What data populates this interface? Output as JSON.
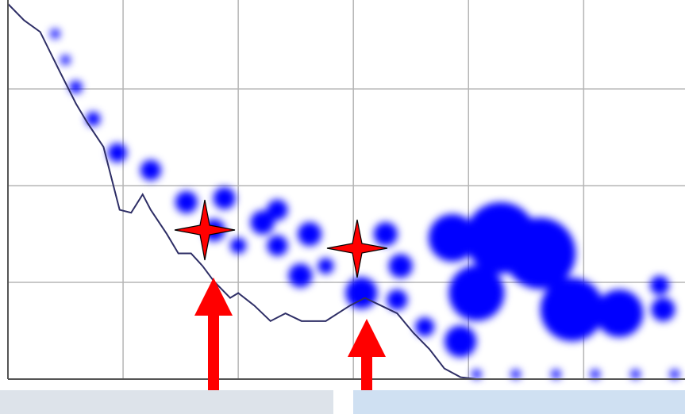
{
  "chart_data": {
    "type": "line",
    "xlim": [
      0,
      5.88
    ],
    "ylim": [
      0,
      3.92
    ],
    "xgrid": [
      1,
      2,
      3,
      4,
      5
    ],
    "ygrid": [
      1,
      2,
      3
    ],
    "grid": true,
    "series": [
      {
        "type": "line",
        "color": "#2e2e66",
        "x": [
          0,
          0.14,
          0.28,
          0.45,
          0.59,
          0.69,
          0.83,
          0.97,
          1.07,
          1.17,
          1.24,
          1.38,
          1.48,
          1.59,
          1.69,
          1.79,
          1.93,
          2.0,
          2.14,
          2.28,
          2.41,
          2.55,
          2.76,
          2.97,
          3.1,
          3.24,
          3.38,
          3.52,
          3.66,
          3.79,
          3.93,
          4.07
        ],
        "values": [
          3.88,
          3.71,
          3.59,
          3.18,
          2.85,
          2.65,
          2.4,
          1.75,
          1.72,
          1.91,
          1.75,
          1.5,
          1.3,
          1.3,
          1.17,
          1.01,
          0.84,
          0.89,
          0.76,
          0.6,
          0.68,
          0.6,
          0.6,
          0.76,
          0.84,
          0.76,
          0.68,
          0.48,
          0.31,
          0.11,
          0.02,
          0
        ]
      },
      {
        "type": "scatter",
        "color": "#0000ff",
        "x": [
          0.41,
          0.5,
          0.59,
          0.74,
          0.95,
          1.24,
          1.55,
          1.88,
          1.79,
          2.21,
          2.34,
          2.0,
          2.34,
          2.62,
          2.76,
          2.54,
          3.28,
          3.41,
          3.07,
          3.38,
          3.62,
          3.86,
          4.28,
          4.62,
          4.07,
          4.9,
          5.31,
          5.66,
          5.69,
          3.93,
          4.07,
          4.41,
          4.76,
          5.1,
          5.45,
          5.79
        ],
        "values": [
          3.57,
          3.3,
          3.02,
          2.69,
          2.34,
          2.16,
          1.83,
          1.87,
          1.54,
          1.62,
          1.75,
          1.38,
          1.38,
          1.5,
          1.17,
          1.07,
          1.5,
          1.17,
          0.89,
          0.82,
          0.54,
          1.46,
          1.46,
          1.3,
          0.89,
          0.72,
          0.68,
          0.97,
          0.72,
          0.39,
          0.05,
          0.05,
          0.05,
          0.05,
          0.05,
          0.05
        ],
        "sizes": [
          0.6,
          0.6,
          0.8,
          0.9,
          1.2,
          1.3,
          1.4,
          1.4,
          1.4,
          1.5,
          1.3,
          1.0,
          1.3,
          1.5,
          1.0,
          1.5,
          1.5,
          1.5,
          2.0,
          1.3,
          1.2,
          3.0,
          4.5,
          4.5,
          3.5,
          4.0,
          3.0,
          1.2,
          1.5,
          2.0,
          0.6,
          0.6,
          0.6,
          0.6,
          0.6,
          0.6
        ]
      }
    ]
  }
}
